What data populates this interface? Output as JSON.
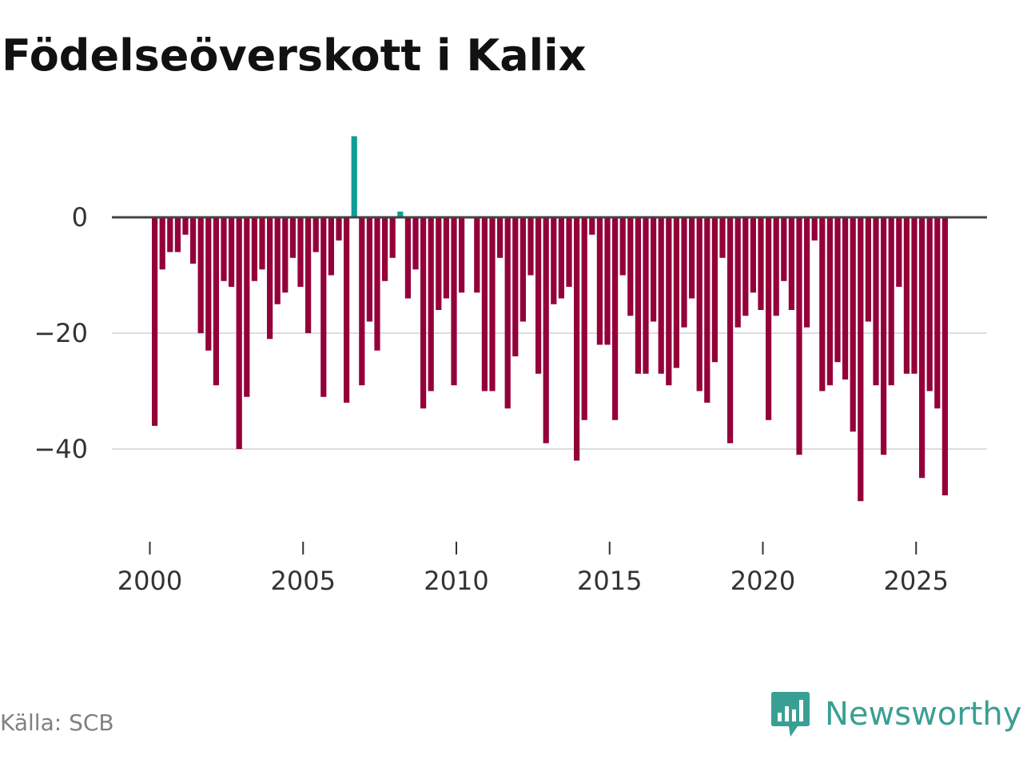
{
  "header": {
    "title": "Födelseöverskott i Kalix"
  },
  "footer": {
    "source": "Källa: SCB",
    "brand": "Newsworthy"
  },
  "colors": {
    "negative": "#940039",
    "positive": "#0e9e95",
    "zero_line": "#444444",
    "grid": "#dddddd",
    "brand": "#3a9f93"
  },
  "icons": {
    "brand_logo": "newsworthy-logo-icon"
  },
  "chart_data": {
    "type": "bar",
    "title": "Födelseöverskott i Kalix",
    "xlabel": "",
    "ylabel": "",
    "ylim": [
      -50,
      15
    ],
    "y_ticks": [
      0,
      -20,
      -40
    ],
    "y_tick_labels": [
      "0",
      "−20",
      "−40"
    ],
    "x_ticks": [
      2000,
      2005,
      2010,
      2015,
      2020,
      2025
    ],
    "x_tick_labels": [
      "2000",
      "2005",
      "2010",
      "2015",
      "2020",
      "2025"
    ],
    "grid": true,
    "frequency": "quarterly",
    "start": "2000 Q1",
    "values": [
      -36,
      -9,
      -6,
      -6,
      -3,
      -8,
      -20,
      -23,
      -29,
      -11,
      -12,
      -40,
      -31,
      -11,
      -9,
      -21,
      -15,
      -13,
      -7,
      -12,
      -20,
      -6,
      -31,
      -10,
      -4,
      -32,
      14,
      -29,
      -18,
      -23,
      -11,
      -7,
      1,
      -14,
      -9,
      -33,
      -30,
      -16,
      -14,
      -29,
      -13,
      0,
      -13,
      -30,
      -30,
      -7,
      -33,
      -24,
      -18,
      -10,
      -27,
      -39,
      -15,
      -14,
      -12,
      -42,
      -35,
      -3,
      -22,
      -22,
      -35,
      -10,
      -17,
      -27,
      -27,
      -18,
      -27,
      -29,
      -26,
      -19,
      -14,
      -30,
      -32,
      -25,
      -7,
      -39,
      -19,
      -17,
      -13,
      -16,
      -35,
      -17,
      -11,
      -16,
      -41,
      -19,
      -4,
      -30,
      -29,
      -25,
      -28,
      -37,
      -49,
      -18,
      -29,
      -41,
      -29,
      -12,
      -27,
      -27,
      -45,
      -30,
      -33,
      -48
    ]
  }
}
